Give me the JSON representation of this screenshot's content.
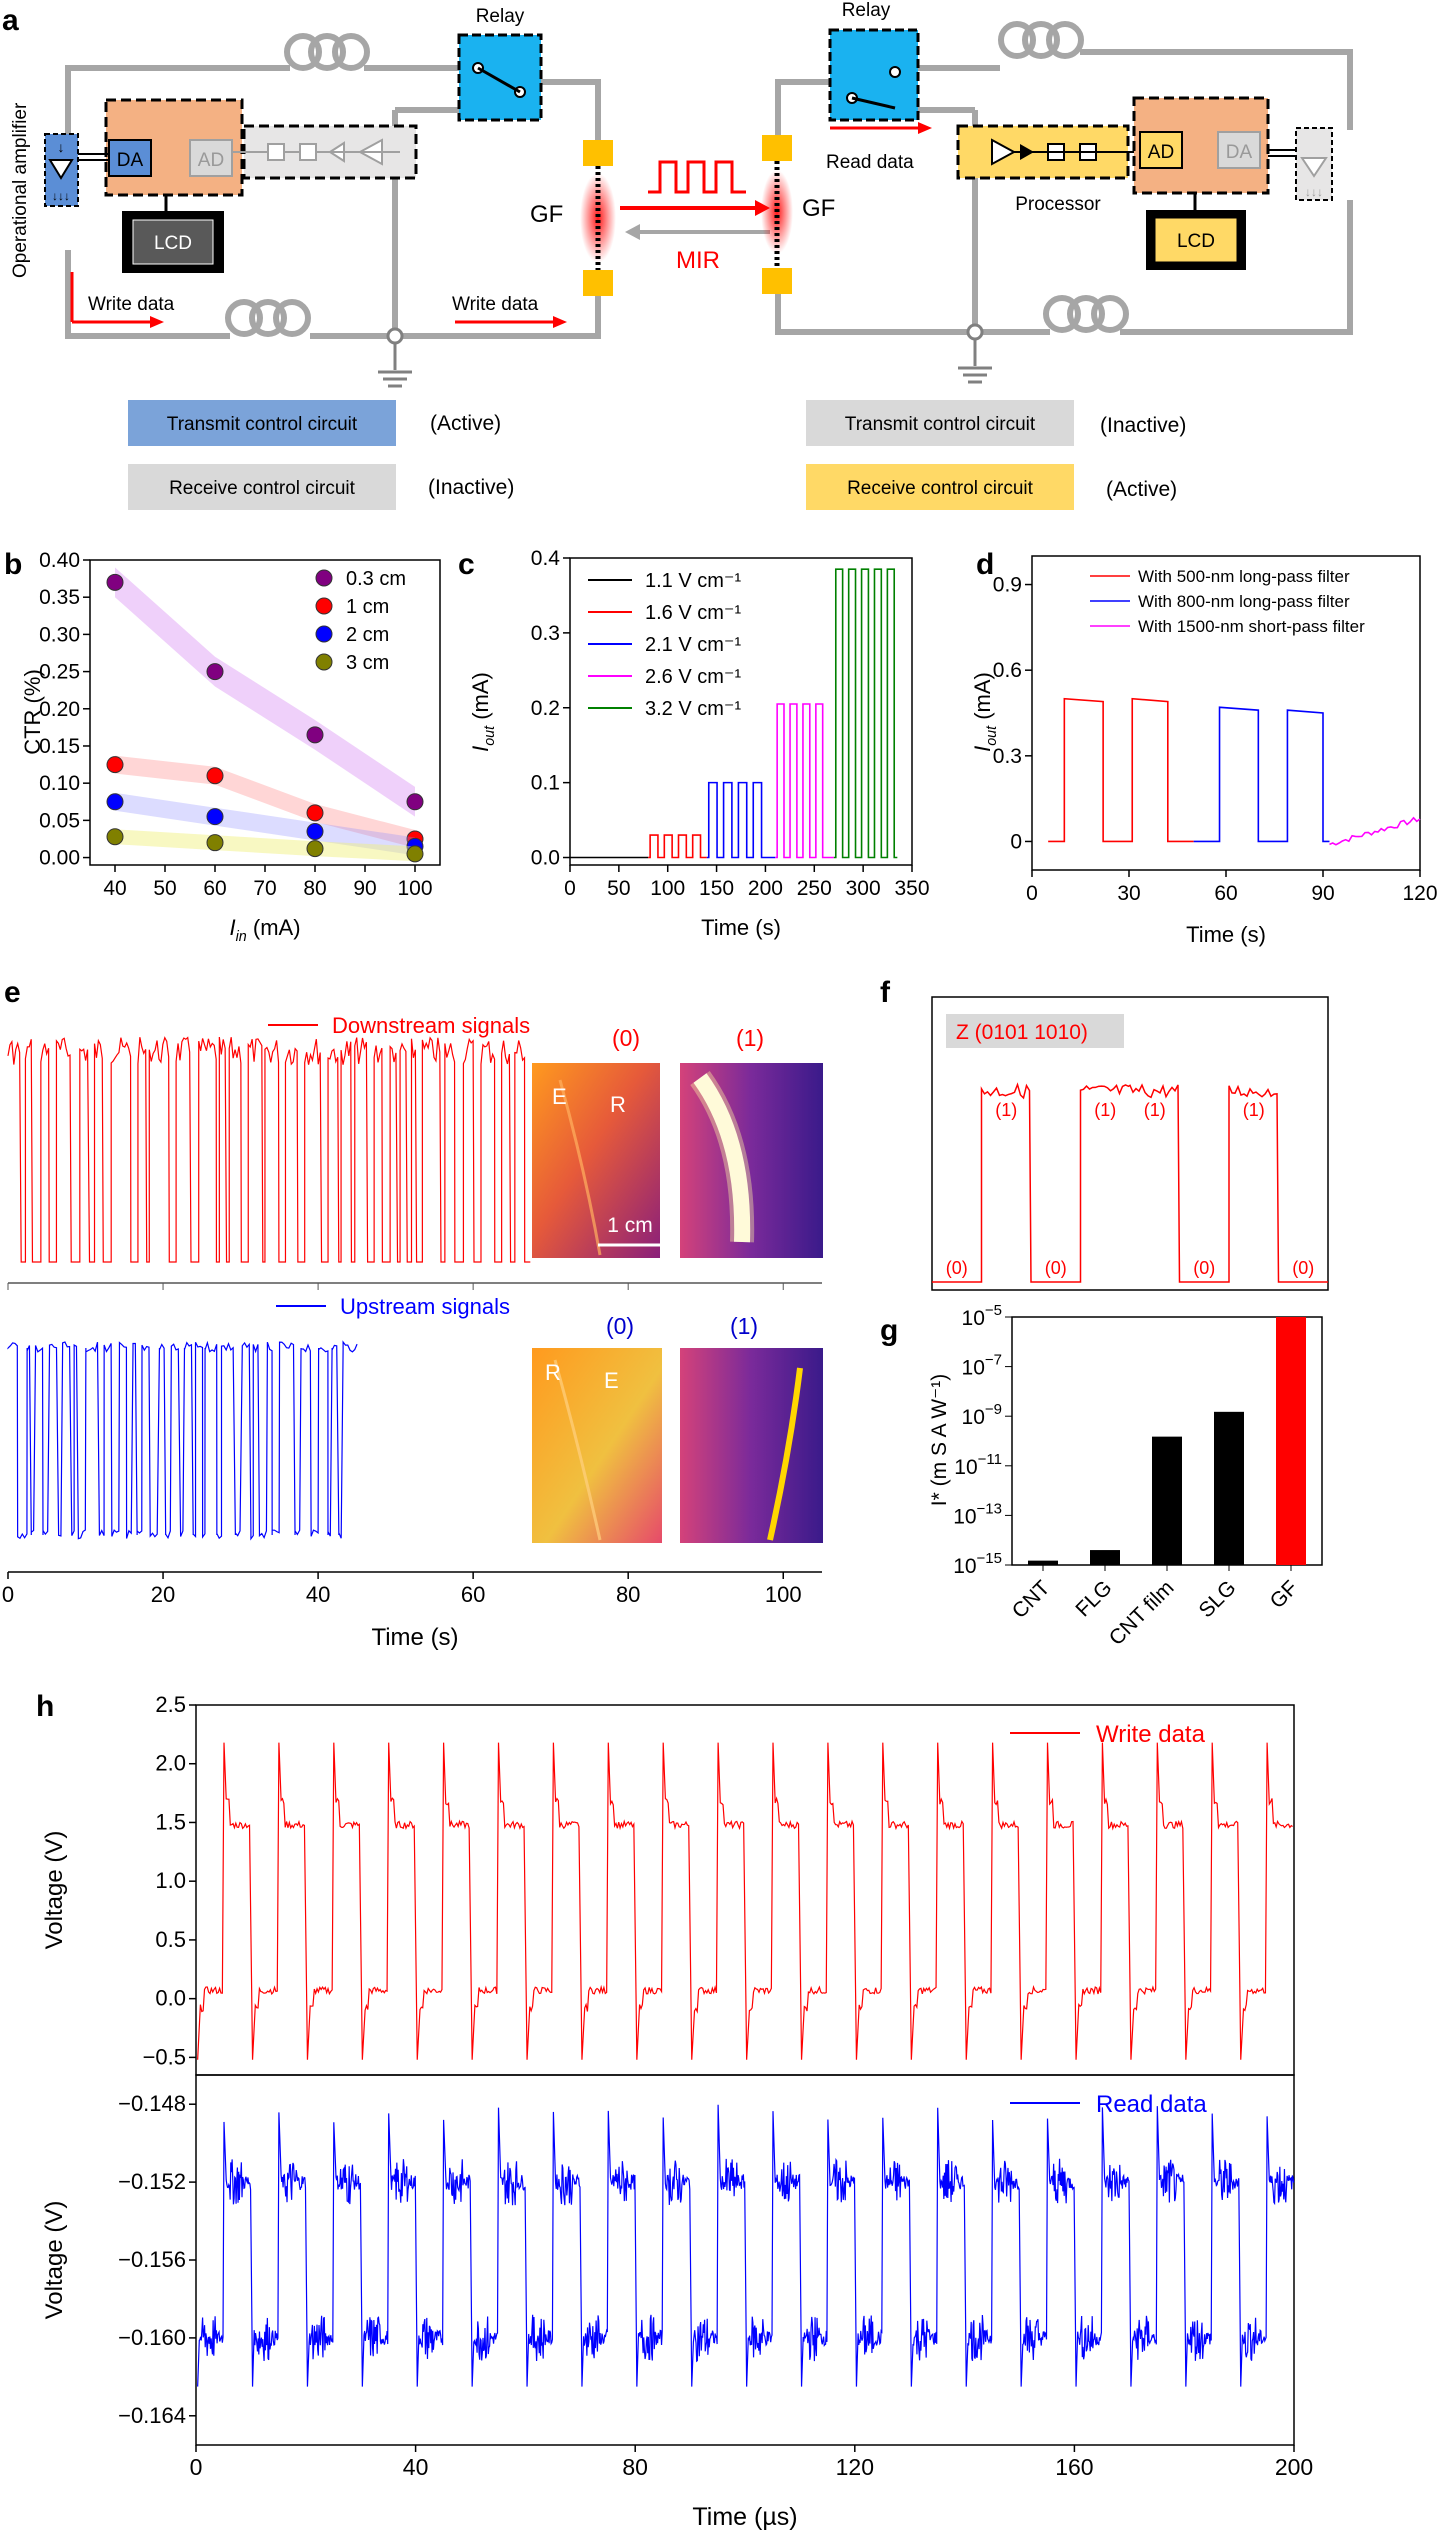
{
  "panel_letters": {
    "a": "a",
    "b": "b",
    "c": "c",
    "d": "d",
    "e": "e",
    "f": "f",
    "g": "g",
    "h": "h"
  },
  "diagram": {
    "left": {
      "opamp_label": "Operational amplifier",
      "relay_label": "Relay",
      "da": "DA",
      "ad": "AD",
      "lcd": "LCD",
      "write_data_1": "Write data",
      "write_data_2": "Write data",
      "gf": "GF"
    },
    "right": {
      "relay_label": "Relay",
      "read_data": "Read data",
      "processor": "Processor",
      "ad": "AD",
      "da": "DA",
      "lcd": "LCD",
      "gf": "GF"
    },
    "mir": "MIR",
    "legend": {
      "left_transmit": "Transmit control circuit",
      "left_transmit_state": "(Active)",
      "left_receive": "Receive control circuit",
      "left_receive_state": "(Inactive)",
      "right_transmit": "Transmit control circuit",
      "right_transmit_state": "(Inactive)",
      "right_receive": "Receive control circuit",
      "right_receive_state": "(Active)"
    },
    "colors": {
      "transmit": "#7ba3d9",
      "receive_inactive": "#d9d9d9",
      "receive_active": "#ffd966",
      "ad_box": "#f4b183",
      "relay": "#1ab2f0",
      "red": "#ff0000"
    }
  },
  "chart_data": [
    {
      "id": "b",
      "type": "scatter",
      "xlabel": "I_in (mA)",
      "xlabel_main": "I",
      "xlabel_sub": "in",
      "xlabel_unit": " (mA)",
      "ylabel": "CTR (%)",
      "xlim": [
        35,
        105
      ],
      "ylim": [
        -0.01,
        0.4
      ],
      "xticks": [
        40,
        50,
        60,
        70,
        80,
        90,
        100
      ],
      "yticks": [
        0.0,
        0.05,
        0.1,
        0.15,
        0.2,
        0.25,
        0.3,
        0.35,
        0.4
      ],
      "ytick_labels": [
        "0.00",
        "0.05",
        "0.10",
        "0.15",
        "0.20",
        "0.25",
        "0.30",
        "0.35",
        "0.40"
      ],
      "x": [
        40,
        60,
        80,
        100
      ],
      "series": [
        {
          "name": "0.3 cm",
          "color": "#800080",
          "values": [
            0.37,
            0.25,
            0.165,
            0.075
          ]
        },
        {
          "name": "1 cm",
          "color": "#ff0000",
          "values": [
            0.125,
            0.11,
            0.06,
            0.025
          ]
        },
        {
          "name": "2 cm",
          "color": "#0000ff",
          "values": [
            0.075,
            0.055,
            0.035,
            0.015
          ]
        },
        {
          "name": "3 cm",
          "color": "#808000",
          "values": [
            0.028,
            0.02,
            0.012,
            0.005
          ]
        }
      ]
    },
    {
      "id": "c",
      "type": "line",
      "xlabel": "Time (s)",
      "ylabel": "I_out (mA)",
      "ylabel_main": "I",
      "ylabel_sub": "out",
      "ylabel_unit": " (mA)",
      "xlim": [
        0,
        350
      ],
      "ylim": [
        -0.01,
        0.4
      ],
      "xticks": [
        0,
        50,
        100,
        150,
        200,
        250,
        300,
        350
      ],
      "yticks": [
        0.0,
        0.1,
        0.2,
        0.3,
        0.4
      ],
      "ytick_labels": [
        "0.0",
        "0.1",
        "0.2",
        "0.3",
        "0.4"
      ],
      "series": [
        {
          "name": "1.1 V cm⁻¹",
          "color": "#000000",
          "start": 0,
          "end": 80,
          "amp": 0.0,
          "period": 22
        },
        {
          "name": "1.6 V cm⁻¹",
          "color": "#ff0000",
          "start": 80,
          "end": 140,
          "amp": 0.03,
          "period": 22
        },
        {
          "name": "2.1 V cm⁻¹",
          "color": "#0000ff",
          "start": 140,
          "end": 210,
          "amp": 0.1,
          "period": 23
        },
        {
          "name": "2.6 V cm⁻¹",
          "color": "#ff00ff",
          "start": 210,
          "end": 270,
          "amp": 0.205,
          "period": 20
        },
        {
          "name": "3.2 V cm⁻¹",
          "color": "#008000",
          "start": 270,
          "end": 335,
          "amp": 0.385,
          "period": 20
        }
      ]
    },
    {
      "id": "d",
      "type": "line",
      "xlabel": "Time (s)",
      "ylabel": "I_out (mA)",
      "ylabel_main": "I",
      "ylabel_sub": "out",
      "ylabel_unit": " (mA)",
      "xlim": [
        0,
        120
      ],
      "ylim": [
        -0.1,
        1.0
      ],
      "xticks": [
        0,
        30,
        60,
        90,
        120
      ],
      "yticks": [
        0,
        0.3,
        0.6,
        0.9
      ],
      "ytick_labels": [
        "0",
        "0.3",
        "0.6",
        "0.9"
      ],
      "series": [
        {
          "name": "With 500-nm long-pass filter",
          "color": "#ff0000",
          "pulses": [
            [
              10,
              22,
              0.5
            ],
            [
              31,
              42,
              0.5
            ]
          ],
          "start": 5,
          "end": 50
        },
        {
          "name": "With 800-nm long-pass filter",
          "color": "#0000ff",
          "pulses": [
            [
              58,
              70,
              0.47
            ],
            [
              79,
              90,
              0.46
            ]
          ],
          "start": 50,
          "end": 92
        },
        {
          "name": "With 1500-nm short-pass filter",
          "color": "#ff00ff",
          "start": 92,
          "end": 120,
          "values_end": 0.09
        }
      ]
    },
    {
      "id": "e",
      "type": "line",
      "xlabel": "Time (s)",
      "xlim": [
        0,
        105
      ],
      "xticks": [
        0,
        20,
        40,
        60,
        80,
        100
      ],
      "series": [
        {
          "name": "Downstream signals",
          "color": "#ff0000",
          "start": 0,
          "end": 67
        },
        {
          "name": "Upstream signals",
          "color": "#0000ff",
          "start": 0,
          "end": 45
        }
      ],
      "image_labels": {
        "state0": "(0)",
        "state1": "(1)",
        "down_e": "E",
        "down_r": "R",
        "scale": "1 cm",
        "up_r": "R",
        "up_e": "E"
      }
    },
    {
      "id": "f",
      "type": "line",
      "title": "Z (0101 1010)",
      "bits": [
        0,
        1,
        0,
        1,
        1,
        0,
        1,
        0
      ],
      "bit_labels": [
        "(0)",
        "(1)",
        "(0)",
        "(1)",
        "(1)",
        "(0)",
        "(1)",
        "(0)"
      ]
    },
    {
      "id": "g",
      "type": "bar",
      "ylabel": "I* (m S A W⁻¹)",
      "categories": [
        "CNT",
        "FLG",
        "CNT film",
        "SLG",
        "GF"
      ],
      "values": [
        1.5e-15,
        4e-15,
        1.5e-10,
        1.5e-09,
        1e-05
      ],
      "colors": [
        "#000000",
        "#000000",
        "#000000",
        "#000000",
        "#ff0000"
      ],
      "yscale": "log",
      "ylim_exp": [
        -15,
        -5
      ],
      "ytick_exps": [
        -15,
        -13,
        -11,
        -9,
        -7,
        -5
      ]
    },
    {
      "id": "h",
      "type": "line",
      "xlabel": "Time (µs)",
      "xlim": [
        0,
        200
      ],
      "xticks": [
        0,
        40,
        80,
        120,
        160,
        200
      ],
      "series": [
        {
          "name": "Write data",
          "color": "#ff0000",
          "ylabel": "Voltage (V)",
          "ylim": [
            -0.65,
            2.5
          ],
          "yticks": [
            -0.5,
            0.0,
            0.5,
            1.0,
            1.5,
            2.0,
            2.5
          ],
          "ytick_labels": [
            "−0.5",
            "0.0",
            "0.5",
            "1.0",
            "1.5",
            "2.0",
            "2.5"
          ],
          "period": 10,
          "high": 1.48,
          "low": 0.07,
          "overshoot": 2.18,
          "undershoot": -0.52
        },
        {
          "name": "Read data",
          "color": "#0000ff",
          "ylabel": "Voltage (V)",
          "ylim": [
            -0.1655,
            -0.1465
          ],
          "yticks": [
            -0.164,
            -0.16,
            -0.156,
            -0.152,
            -0.148
          ],
          "ytick_labels": [
            "−0.164",
            "−0.160",
            "−0.156",
            "−0.152",
            "−0.148"
          ],
          "period": 10,
          "high": -0.152,
          "low": -0.16
        }
      ]
    }
  ]
}
